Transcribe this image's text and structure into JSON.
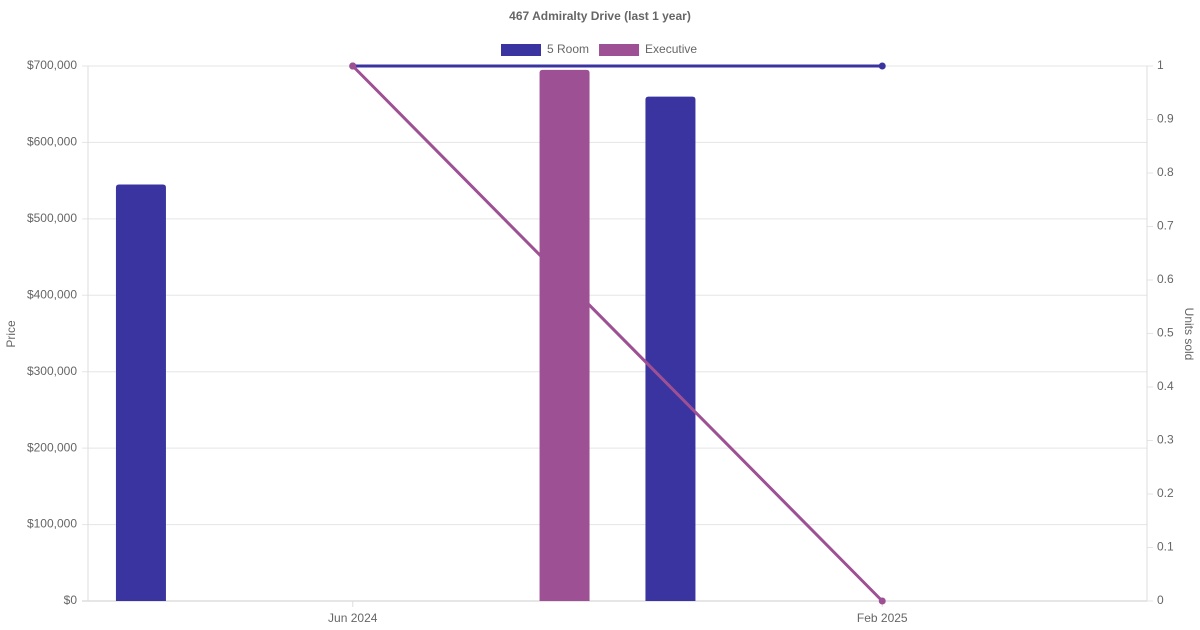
{
  "chart_data": {
    "type": "bar-line",
    "title": "467 Admiralty Drive (last 1 year)",
    "categories": [
      "Jun 2024",
      "Feb 2025"
    ],
    "series": [
      {
        "name": "5 Room",
        "color": "#3a34a0",
        "values": [
          545000,
          660000
        ],
        "units": [
          1,
          1
        ],
        "units_axis": "y2"
      },
      {
        "name": "Executive",
        "color": "#9e5094",
        "values": [
          695000,
          null
        ],
        "units": [
          1,
          0
        ],
        "units_axis": "y2"
      }
    ],
    "ylabel": "Price",
    "y2label": "Units sold",
    "ylim": [
      0,
      700000
    ],
    "yticks": [
      {
        "value": 0,
        "label": "$0"
      },
      {
        "value": 100000,
        "label": "$100,000"
      },
      {
        "value": 200000,
        "label": "$200,000"
      },
      {
        "value": 300000,
        "label": "$300,000"
      },
      {
        "value": 400000,
        "label": "$400,000"
      },
      {
        "value": 500000,
        "label": "$500,000"
      },
      {
        "value": 600000,
        "label": "$600,000"
      },
      {
        "value": 700000,
        "label": "$700,000"
      }
    ],
    "y2lim": [
      0,
      1
    ],
    "y2ticks": [
      0,
      0.1,
      0.2,
      0.3,
      0.4,
      0.5,
      0.6,
      0.7,
      0.8,
      0.9,
      1
    ],
    "grid": true,
    "legend": "top"
  }
}
